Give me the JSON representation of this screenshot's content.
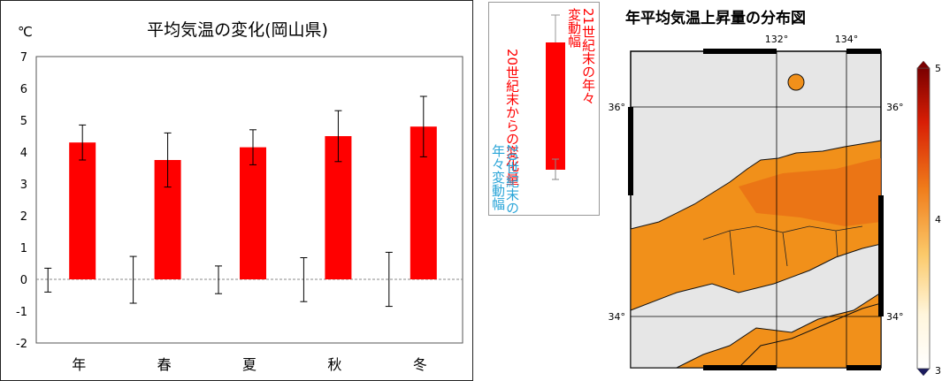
{
  "chart_data": {
    "type": "bar",
    "title": "平均気温の変化(岡山県)",
    "ylabel": "℃",
    "xlabel": "",
    "ylim": [
      -2,
      7
    ],
    "yticks": [
      -2,
      -1,
      0,
      1,
      2,
      3,
      4,
      5,
      6,
      7
    ],
    "categories": [
      "年",
      "春",
      "夏",
      "秋",
      "冬"
    ],
    "series": [
      {
        "values": [
          4.3,
          3.75,
          4.15,
          4.5,
          4.8
        ],
        "err_low": [
          3.75,
          2.9,
          3.6,
          3.7,
          3.85
        ],
        "err_high": [
          4.85,
          4.6,
          4.7,
          5.3,
          5.75
        ]
      }
    ],
    "baseline_variability": {
      "low": [
        -0.4,
        -0.75,
        -0.45,
        -0.7,
        -0.85
      ],
      "high": [
        0.35,
        0.72,
        0.42,
        0.68,
        0.85
      ]
    },
    "grid": false,
    "colors": {
      "bar": "#ff0000",
      "errorbar": "#000000"
    }
  },
  "legend": {
    "change_label": "20世紀末からの変化量",
    "future_var_label": "21世紀末の年々変動幅",
    "baseline_var_label": "20世紀末の年々変動幅",
    "colors": {
      "red_text": "#ff0000",
      "blue_text": "#2aa5d8"
    }
  },
  "map": {
    "title": "年平均気温上昇量の分布図",
    "lon_labels": [
      "132°",
      "134°"
    ],
    "lat_labels": [
      "36°",
      "34°"
    ],
    "colorbar_labels": [
      "5",
      "4",
      "3"
    ],
    "colors": {
      "sea": "#e6e6e6",
      "land_warm": "#ef8a10",
      "land_mid": "#f5a41f",
      "land_hot": "#e8641a"
    }
  }
}
